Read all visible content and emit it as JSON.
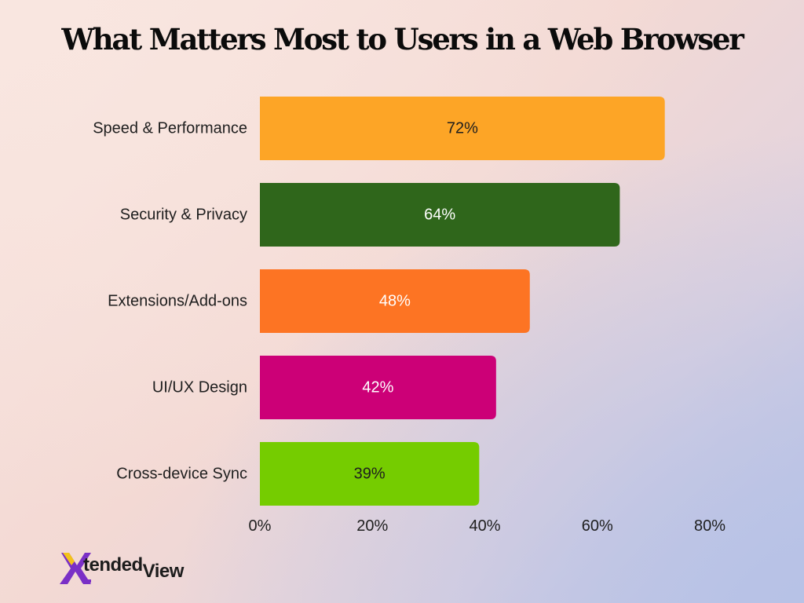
{
  "title": "What Matters Most to Users in a Web Browser",
  "chart_data": {
    "type": "bar",
    "orientation": "horizontal",
    "title": "What Matters Most to Users in a Web Browser",
    "xlabel": "",
    "ylabel": "",
    "xlim": [
      0,
      80
    ],
    "ticks": [
      "0%",
      "20%",
      "40%",
      "60%",
      "80%"
    ],
    "tick_values": [
      0,
      20,
      40,
      60,
      80
    ],
    "grid": false,
    "categories": [
      "Speed & Performance",
      "Security & Privacy",
      "Extensions/Add-ons",
      "UI/UX Design",
      "Cross-device Sync"
    ],
    "values": [
      72,
      64,
      48,
      42,
      39
    ],
    "value_labels": [
      "72%",
      "64%",
      "48%",
      "42%",
      "39%"
    ],
    "colors": [
      "#fda526",
      "#2f661b",
      "#fd7423",
      "#cc0077",
      "#75cc00"
    ],
    "label_colors": [
      "#1e1e1e",
      "#ffffff",
      "#ffffff",
      "#ffffff",
      "#1e1e1e"
    ]
  },
  "logo": {
    "brand_name": "XtendedView",
    "mark_letter": "X",
    "text_tended": "tended",
    "text_view": "View",
    "colors": {
      "purple": "#7a2fc6",
      "yellow": "#f3c21b",
      "dark": "#1c1c1c"
    }
  }
}
